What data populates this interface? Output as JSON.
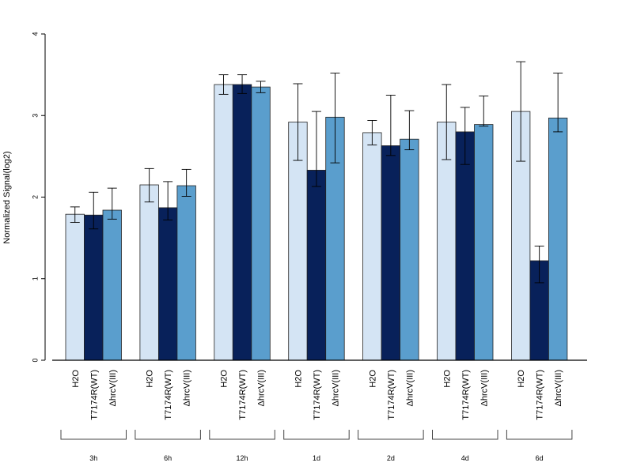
{
  "chart_data": {
    "type": "bar",
    "title": "",
    "xlabel": "",
    "ylabel": "Normalized Signal(log2)",
    "ylim": [
      0,
      4
    ],
    "yticks": [
      "0",
      "1",
      "2",
      "3",
      "4"
    ],
    "grid": false,
    "legend": "none",
    "groups": [
      "3h",
      "6h",
      "12h",
      "1d",
      "2d",
      "4d",
      "6d"
    ],
    "series": [
      {
        "label": "H2O",
        "color": "#d4e4f4",
        "values": [
          1.79,
          2.15,
          3.38,
          2.92,
          2.79,
          2.92,
          3.05
        ],
        "err_low": [
          1.69,
          1.94,
          3.26,
          2.45,
          2.64,
          2.46,
          2.44
        ],
        "err_high": [
          1.88,
          2.35,
          3.5,
          3.39,
          2.94,
          3.38,
          3.66
        ]
      },
      {
        "label": "T7174R(WT)",
        "color": "#08215a",
        "values": [
          1.78,
          1.87,
          3.38,
          2.33,
          2.63,
          2.8,
          1.22
        ],
        "err_low": [
          1.61,
          1.72,
          3.27,
          2.13,
          2.51,
          2.4,
          0.95
        ],
        "err_high": [
          2.06,
          2.19,
          3.5,
          3.05,
          3.25,
          3.1,
          1.4
        ]
      },
      {
        "label": "ΔhrcV(III)",
        "color": "#5a9ecd",
        "values": [
          1.84,
          2.14,
          3.35,
          2.98,
          2.71,
          2.89,
          2.97
        ],
        "err_low": [
          1.73,
          2.01,
          3.28,
          2.42,
          2.58,
          2.87,
          2.8
        ],
        "err_high": [
          2.11,
          2.34,
          3.42,
          3.52,
          3.06,
          3.24,
          3.52
        ]
      }
    ]
  }
}
